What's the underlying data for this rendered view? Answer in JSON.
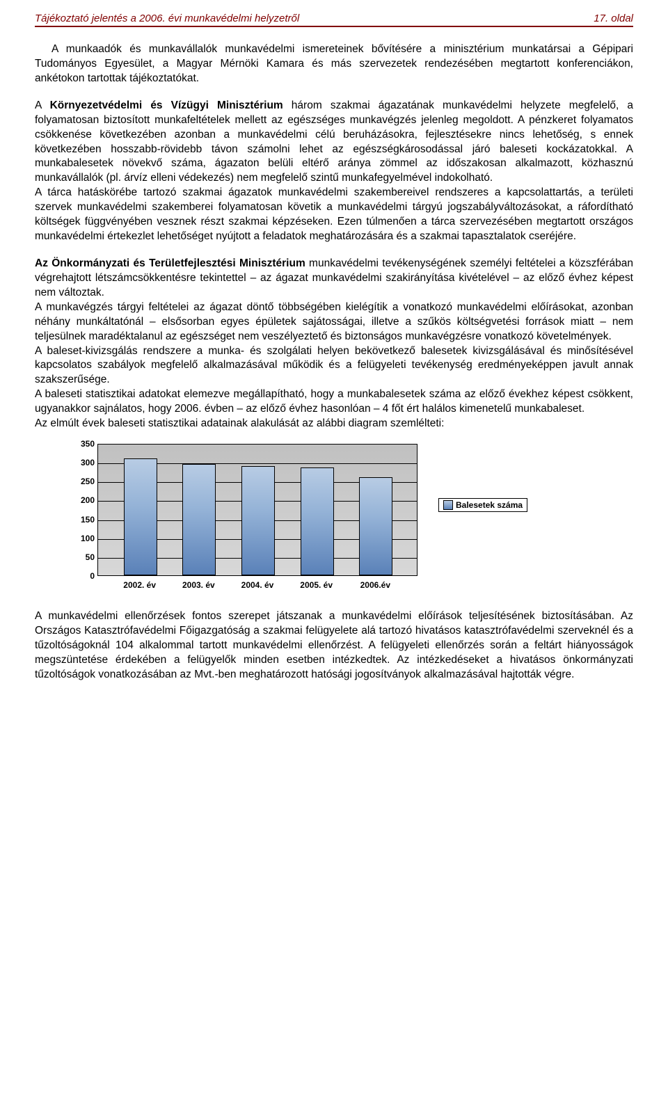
{
  "header": {
    "left": "Tájékoztató jelentés a 2006. évi munkavédelmi helyzetről",
    "right": "17. oldal"
  },
  "paragraphs": {
    "p1": "A munkaadók és munkavállalók munkavédelmi ismereteinek bővítésére a minisztérium munkatársai a Gépipari Tudományos Egyesület, a Magyar Mérnöki Kamara és más szervezetek rendezésében megtartott konferenciákon, ankétokon tartottak tájékoztatókat.",
    "p2_a": "A ",
    "p2_bold": "Környezetvédelmi és Vízügyi Minisztérium",
    "p2_b": " három szakmai ágazatának munkavédelmi helyzete megfelelő, a folyamatosan biztosított munkafeltételek mellett az egészséges munkavégzés jelenleg megoldott. A pénzkeret folyamatos csökkenése következében azonban a munkavédelmi célú beruházásokra, fejlesztésekre nincs lehetőség, s ennek következében hosszabb-rövidebb távon számolni lehet az egészségkárosodással járó baleseti kockázatokkal. A munkabalesetek növekvő száma, ágazaton belüli eltérő aránya zömmel az időszakosan alkalmazott, közhasznú munkavállalók (pl. árvíz elleni védekezés) nem megfelelő szintű munkafegyelmével indokolható.",
    "p2_c": "A tárca hatáskörébe tartozó szakmai ágazatok munkavédelmi szakembereivel rendszeres a kapcsolattartás, a területi szervek munkavédelmi szakemberei folyamatosan követik a munkavédelmi tárgyú jogszabályváltozásokat, a ráfordítható költségek függvényében vesznek részt szakmai képzéseken. Ezen túlmenően a tárca szervezésében megtartott országos munkavédelmi értekezlet lehetőséget nyújtott a feladatok meghatározására és a szakmai tapasztalatok cseréjére.",
    "p3_bold": "Az Önkormányzati és Területfejlesztési Minisztérium",
    "p3_a": " munkavédelmi tevékenységének személyi feltételei a közszférában végrehajtott létszámcsökkentésre tekintettel – az ágazat munkavédelmi szakirányítása kivételével – az előző évhez képest nem változtak.",
    "p3_b": "A munkavégzés tárgyi feltételei az ágazat döntő többségében kielégítik a vonatkozó munkavédelmi előírásokat, azonban néhány munkáltatónál – elsősorban egyes épületek sajátosságai, illetve a szűkös költségvetési források miatt – nem teljesülnek maradéktalanul az egészséget nem veszélyeztető és biztonságos munkavégzésre vonatkozó követelmények.",
    "p3_c": "A baleset-kivizsgálás rendszere a munka- és szolgálati helyen bekövetkező balesetek kivizsgálásával és minősítésével kapcsolatos szabályok megfelelő alkalmazásával működik és a felügyeleti tevékenység eredményeképpen javult annak szakszerűsége.",
    "p3_d": "A baleseti statisztikai adatokat elemezve megállapítható, hogy a munkabalesetek száma az előző évekhez képest csökkent, ugyanakkor sajnálatos, hogy 2006. évben – az előző évhez hasonlóan – 4 főt ért halálos kimenetelű munkabaleset.",
    "p3_e": "Az elmúlt évek baleseti statisztikai adatainak alakulását az alábbi diagram szemlélteti:",
    "p4": "A munkavédelmi ellenőrzések fontos szerepet játszanak a munkavédelmi előírások teljesítésének biztosításában. Az Országos Katasztrófavédelmi Főigazgatóság a szakmai felügyelete alá tartozó hivatásos katasztrófavédelmi szerveknél és a tűzoltóságoknál 104 alkalommal tartott munkavédelmi ellenőrzést. A felügyeleti ellenőrzés során a feltárt hiányosságok megszüntetése érdekében a felügyelők minden esetben intézkedtek. Az intézkedéseket a hivatásos önkormányzati tűzoltóságok vonatkozásában az Mvt.-ben meghatározott hatósági jogosítványok alkalmazásával hajtották végre."
  },
  "chart": {
    "type": "bar",
    "categories": [
      "2002. év",
      "2003. év",
      "2004. év",
      "2005. év",
      "2006.év"
    ],
    "values": [
      310,
      295,
      290,
      285,
      260
    ],
    "ylim": [
      0,
      350
    ],
    "ytick_step": 50,
    "bar_color_top": "#b8cce4",
    "bar_color_bottom": "#5a81b8",
    "background_color": "#c0c0c0",
    "grid_color": "#000000",
    "legend_label": "Balesetek száma"
  }
}
